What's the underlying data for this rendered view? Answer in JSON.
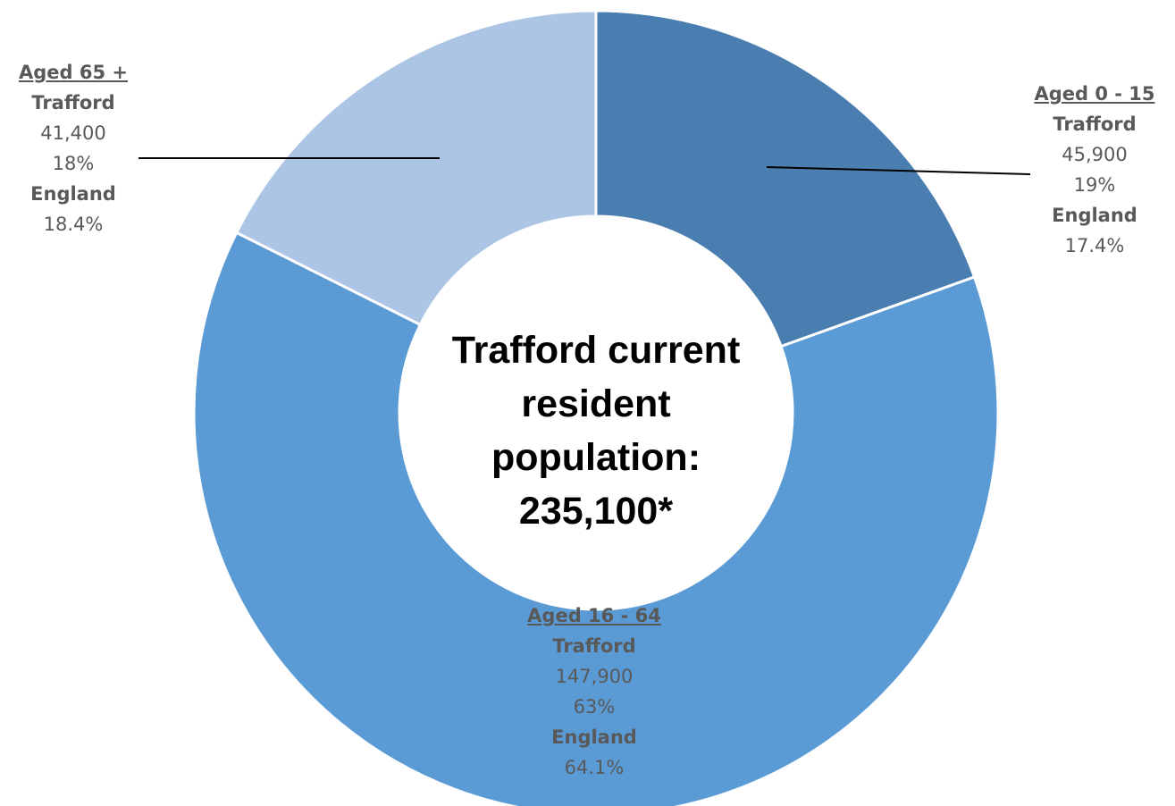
{
  "chart_data": {
    "type": "pie",
    "title": "Trafford current resident population: 235,100*",
    "categories": [
      "Aged 0 - 15",
      "Aged 16 - 64",
      "Aged 65 +"
    ],
    "values": [
      45900,
      147900,
      41400
    ],
    "colors": [
      "#4a7eb0",
      "#5b9bd5",
      "#adc5e5"
    ],
    "segments": [
      {
        "heading": "Aged 0 - 15",
        "area_label": "Trafford",
        "count": "45,900",
        "share": "19%",
        "comparator_label": "England",
        "comparator_share": "17.4%",
        "color": "#4a7eb0"
      },
      {
        "heading": "Aged 16 - 64",
        "area_label": "Trafford",
        "count": "147,900",
        "share": "63%",
        "comparator_label": "England",
        "comparator_share": "64.1%",
        "color": "#5b9bd5"
      },
      {
        "heading": "Aged 65 +",
        "area_label": "Trafford",
        "count": "41,400",
        "share": "18%",
        "comparator_label": "England",
        "comparator_share": "18.4%",
        "color": "#adc5e5"
      }
    ]
  },
  "center": {
    "line1": "Trafford current",
    "line2": "resident",
    "line3": "population:",
    "line4": "235,100*"
  }
}
